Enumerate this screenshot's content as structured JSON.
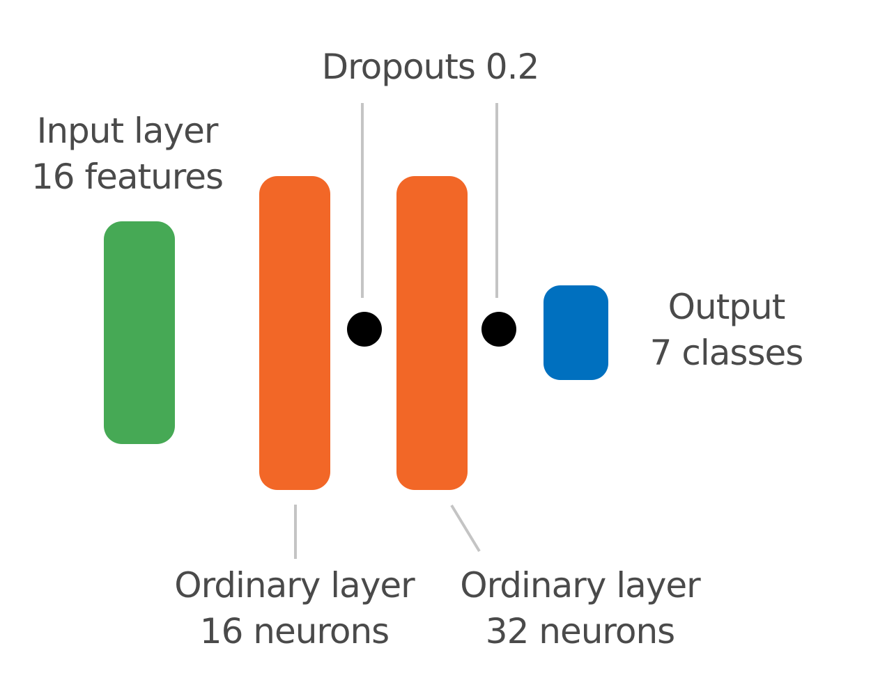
{
  "diagram": {
    "input": {
      "line1": "Input layer",
      "line2": "16 features",
      "color": "#46a955"
    },
    "hidden1": {
      "line1": "Ordinary layer",
      "line2": "16 neurons",
      "color": "#f26727"
    },
    "hidden2": {
      "line1": "Ordinary layer",
      "line2": "32 neurons",
      "color": "#f26727"
    },
    "dropout": {
      "label": "Dropouts 0.2",
      "dot_color": "#000000"
    },
    "output": {
      "line1": "Output",
      "line2": "7 classes",
      "color": "#0070bf"
    },
    "leader_color": "#c4c4c4"
  }
}
